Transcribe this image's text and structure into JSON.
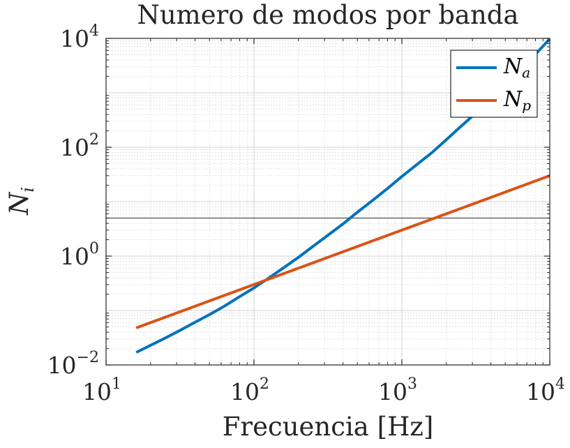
{
  "chart_data": {
    "type": "line",
    "title": "Numero de modos por banda",
    "xlabel": "Frecuencia [Hz]",
    "ylabel": {
      "base": "N",
      "sub": "i"
    },
    "x_scale": "log",
    "y_scale": "log",
    "xlim": [
      10,
      10000
    ],
    "ylim": [
      0.01,
      10000
    ],
    "x_ticks": [
      {
        "value": 10,
        "base": "10",
        "exp": "1"
      },
      {
        "value": 100,
        "base": "10",
        "exp": "2"
      },
      {
        "value": 1000,
        "base": "10",
        "exp": "3"
      },
      {
        "value": 10000,
        "base": "10",
        "exp": "4"
      }
    ],
    "y_ticks": [
      {
        "value": 0.01,
        "base": "10",
        "exp": "−2"
      },
      {
        "value": 1,
        "base": "10",
        "exp": "0"
      },
      {
        "value": 100,
        "base": "10",
        "exp": "2"
      },
      {
        "value": 10000,
        "base": "10",
        "exp": "4"
      }
    ],
    "grid": true,
    "minor_grid": true,
    "legend_location": "top-right",
    "reference_line": {
      "y": 5
    },
    "series": [
      {
        "name": "N_a",
        "label_base": "N",
        "label_sub": "a",
        "color": "#0072BD",
        "x": [
          16,
          20,
          25,
          31.5,
          40,
          50,
          63,
          80,
          100,
          125,
          160,
          200,
          250,
          315,
          400,
          500,
          630,
          800,
          1000,
          1250,
          1600,
          2000,
          2500,
          3150,
          4000,
          5000,
          6300,
          8000,
          10000
        ],
        "y": [
          0.017,
          0.023,
          0.031,
          0.043,
          0.061,
          0.084,
          0.12,
          0.18,
          0.26,
          0.39,
          0.62,
          0.95,
          1.5,
          2.4,
          3.9,
          6.4,
          10.4,
          17.5,
          29,
          47,
          80,
          138,
          240,
          420,
          750,
          1380,
          2700,
          5100,
          9800
        ]
      },
      {
        "name": "N_p",
        "label_base": "N",
        "label_sub": "p",
        "color": "#D95319",
        "x": [
          16,
          10000
        ],
        "y": [
          0.048,
          30
        ]
      }
    ]
  }
}
